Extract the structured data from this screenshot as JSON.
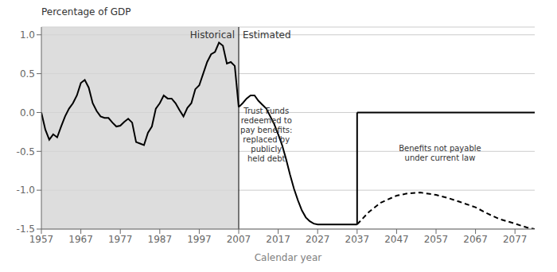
{
  "chart_data": {
    "type": "line",
    "ylabel": "Percentage of GDP",
    "xlabel": "Calendar year",
    "xlim": [
      1957,
      2082
    ],
    "xticks": [
      1957,
      1967,
      1977,
      1987,
      1997,
      2007,
      2017,
      2027,
      2037,
      2047,
      2057,
      2067,
      2077
    ],
    "ylim": [
      -1.5,
      1.1
    ],
    "yticks": [
      -1.5,
      {
        "value": -1.0,
        "label": "-1.0"
      },
      -0.5,
      {
        "value": 0.0,
        "label": "0.0"
      },
      0.5,
      {
        "value": 1.0,
        "label": "1.0"
      }
    ],
    "grid": true,
    "regions": [
      {
        "label": "Historical",
        "x": [
          1957,
          2007
        ],
        "color": "#d4d4d4"
      },
      {
        "label": "Estimated",
        "x": [
          2007,
          2082
        ]
      }
    ],
    "vertical_lines": [
      2007
    ],
    "series": [
      {
        "x": [
          1957,
          1958,
          1959,
          1960,
          1961,
          1962,
          1963,
          1964,
          1965,
          1966,
          1967,
          1968,
          1969,
          1970,
          1971,
          1972,
          1973,
          1974,
          1975,
          1976,
          1977,
          1978,
          1979,
          1980,
          1981,
          1982,
          1983,
          1984,
          1985,
          1986,
          1987,
          1988,
          1989,
          1990,
          1991,
          1992,
          1993,
          1994,
          1995,
          1996,
          1997,
          1998,
          1999,
          2000,
          2001,
          2002,
          2003,
          2004,
          2005,
          2006,
          2007
        ],
        "values": [
          0.0,
          -0.22,
          -0.35,
          -0.28,
          -0.32,
          -0.18,
          -0.05,
          0.05,
          0.12,
          0.22,
          0.38,
          0.42,
          0.32,
          0.12,
          0.02,
          -0.05,
          -0.07,
          -0.07,
          -0.13,
          -0.18,
          -0.17,
          -0.12,
          -0.08,
          -0.13,
          -0.38,
          -0.4,
          -0.42,
          -0.26,
          -0.18,
          0.05,
          0.12,
          0.22,
          0.18,
          0.18,
          0.12,
          0.03,
          -0.05,
          0.06,
          0.12,
          0.3,
          0.35,
          0.5,
          0.65,
          0.75,
          0.78,
          0.9,
          0.86,
          0.63,
          0.65,
          0.6,
          0.07
        ],
        "color": "#000000",
        "line_style": "solid"
      },
      {
        "x": [
          2007,
          2008,
          2009,
          2010,
          2011,
          2012,
          2013,
          2014,
          2015,
          2016,
          2017,
          2018,
          2019,
          2020,
          2021,
          2022,
          2023,
          2024,
          2025,
          2026,
          2027,
          2028,
          2029,
          2030,
          2031,
          2032,
          2033,
          2034,
          2037
        ],
        "values": [
          0.07,
          0.12,
          0.18,
          0.22,
          0.22,
          0.15,
          0.1,
          0.05,
          -0.05,
          -0.15,
          -0.28,
          -0.42,
          -0.6,
          -0.8,
          -0.98,
          -1.13,
          -1.26,
          -1.35,
          -1.4,
          -1.43,
          -1.44,
          -1.44,
          -1.44,
          -1.44,
          -1.44,
          -1.44,
          -1.44,
          -1.44,
          -1.44
        ],
        "color": "#000000",
        "line_style": "solid"
      },
      {
        "x": [
          2037,
          2037
        ],
        "values": [
          -1.44,
          0.0
        ],
        "color": "#000000",
        "line_style": "solid"
      },
      {
        "x": [
          2037,
          2082
        ],
        "values": [
          0.0,
          0.0
        ],
        "color": "#000000",
        "line_style": "solid"
      },
      {
        "x": [
          2037,
          2040,
          2043,
          2047,
          2050,
          2053,
          2057,
          2060,
          2063,
          2067,
          2070,
          2073,
          2077,
          2080,
          2082
        ],
        "values": [
          -1.44,
          -1.28,
          -1.16,
          -1.07,
          -1.04,
          -1.03,
          -1.06,
          -1.1,
          -1.15,
          -1.22,
          -1.3,
          -1.37,
          -1.43,
          -1.48,
          -1.5
        ],
        "color": "#000000",
        "line_style": "dashed"
      }
    ],
    "annotations": [
      {
        "text": "Trust Funds\nredeemed to\npay benefits:\nreplaced by\npublicly\nheld debt",
        "x": 2014,
        "y": -0.28
      },
      {
        "text": "Benefits not payable\nunder current law",
        "x": 2058,
        "y": -0.52
      }
    ]
  }
}
